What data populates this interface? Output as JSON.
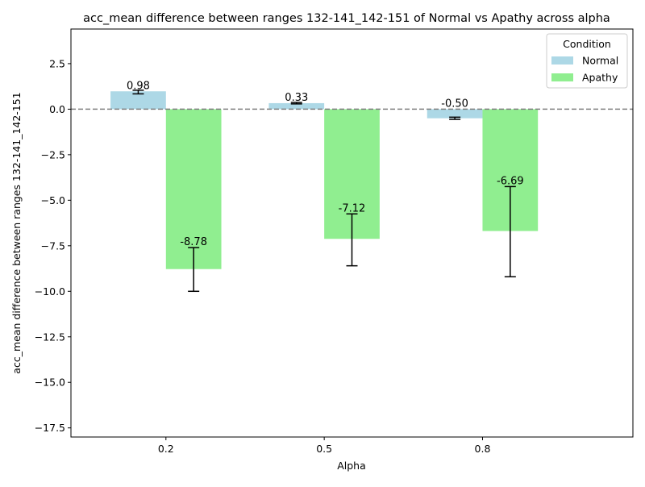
{
  "chart_data": {
    "type": "bar",
    "title": "acc_mean difference between ranges 132-141_142-151 of Normal vs Apathy across alpha",
    "xlabel": "Alpha",
    "ylabel": "acc_mean difference between ranges 132-141_142-151",
    "categories": [
      "0.2",
      "0.5",
      "0.8"
    ],
    "ylim": [
      -18,
      4.4
    ],
    "yticks": [
      2.5,
      0.0,
      -2.5,
      -5.0,
      -7.5,
      -10.0,
      -12.5,
      -15.0,
      -17.5
    ],
    "ytick_labels": [
      "2.5",
      "0.0",
      "−2.5",
      "−5.0",
      "−7.5",
      "−10.0",
      "−12.5",
      "−15.0",
      "−17.5"
    ],
    "reference_line": 0,
    "grid": false,
    "legend": {
      "title": "Condition",
      "placement": "top-right"
    },
    "series": [
      {
        "name": "Normal",
        "color": "#add8e6",
        "values": [
          0.98,
          0.33,
          -0.5
        ],
        "labels": [
          "0.98",
          "0.33",
          "-0.50"
        ],
        "error": [
          [
            0.84,
            1.04
          ],
          [
            0.29,
            0.37
          ],
          [
            -0.56,
            -0.44
          ]
        ]
      },
      {
        "name": "Apathy",
        "color": "#90ee90",
        "values": [
          -8.78,
          -7.12,
          -6.69
        ],
        "labels": [
          "-8.78",
          "-7.12",
          "-6.69"
        ],
        "error": [
          [
            -10.0,
            -7.6
          ],
          [
            -8.6,
            -5.75
          ],
          [
            -9.2,
            -4.25
          ]
        ]
      }
    ]
  }
}
